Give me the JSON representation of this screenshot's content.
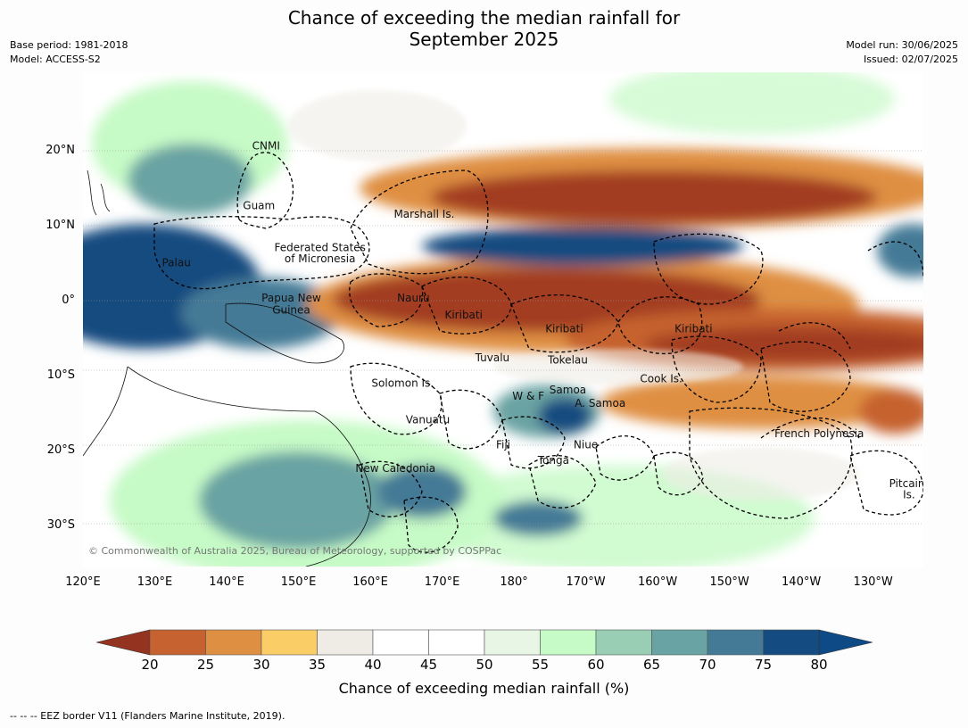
{
  "title": {
    "line1": "Chance of exceeding the median rainfall for",
    "line2": "September 2025"
  },
  "meta_left": {
    "base_period": "Base period: 1981-2018",
    "model": "Model: ACCESS-S2"
  },
  "meta_right": {
    "model_run": "Model run: 30/06/2025",
    "issued": "Issued: 02/07/2025"
  },
  "map": {
    "lon_ticks": [
      "120°E",
      "130°E",
      "140°E",
      "150°E",
      "160°E",
      "170°E",
      "180°",
      "170°W",
      "160°W",
      "150°W",
      "140°W",
      "130°W"
    ],
    "lat_ticks": [
      "20°N",
      "10°N",
      "0°",
      "10°S",
      "20°S",
      "30°S"
    ],
    "lon_range": [
      120,
      237
    ],
    "lat_range": [
      -35.5,
      30.5
    ],
    "labels": [
      {
        "text": "CNMI",
        "lon": 145.5,
        "lat": 20.2
      },
      {
        "text": "Guam",
        "lon": 144.5,
        "lat": 12.2
      },
      {
        "text": "Marshall Is.",
        "lon": 167.5,
        "lat": 11.1
      },
      {
        "text": "Federated States",
        "lon": 153,
        "lat": 6.6
      },
      {
        "text": "of Micronesia",
        "lon": 153,
        "lat": 5.1
      },
      {
        "text": "Palau",
        "lon": 133,
        "lat": 4.6
      },
      {
        "text": "Papua New",
        "lon": 149,
        "lat": -0.1
      },
      {
        "text": "Guinea",
        "lon": 149,
        "lat": -1.7
      },
      {
        "text": "Nauru",
        "lon": 166,
        "lat": -0.1
      },
      {
        "text": "Kiribati",
        "lon": 173,
        "lat": -2.4
      },
      {
        "text": "Kiribati",
        "lon": 187,
        "lat": -4.2
      },
      {
        "text": "Kiribati",
        "lon": 205,
        "lat": -4.2
      },
      {
        "text": "Tuvalu",
        "lon": 177,
        "lat": -8.1
      },
      {
        "text": "Tokelau",
        "lon": 187.5,
        "lat": -8.4
      },
      {
        "text": "Cook Is.",
        "lon": 200.5,
        "lat": -10.9
      },
      {
        "text": "Solomon Is.",
        "lon": 164.5,
        "lat": -11.5
      },
      {
        "text": "Samoa",
        "lon": 187.5,
        "lat": -12.4
      },
      {
        "text": "W & F",
        "lon": 182,
        "lat": -13.2
      },
      {
        "text": "A. Samoa",
        "lon": 192,
        "lat": -14.2
      },
      {
        "text": "Vanuatu",
        "lon": 168,
        "lat": -16.4
      },
      {
        "text": "Fiji",
        "lon": 178.5,
        "lat": -19.7
      },
      {
        "text": "Niue",
        "lon": 190,
        "lat": -19.7
      },
      {
        "text": "French Polynesia",
        "lon": 222.5,
        "lat": -18.2
      },
      {
        "text": "Tonga",
        "lon": 185.5,
        "lat": -21.8
      },
      {
        "text": "New Caledonia",
        "lon": 163.5,
        "lat": -22.9
      },
      {
        "text": "Pitcairn",
        "lon": 235,
        "lat": -24.9
      },
      {
        "text": "Is.",
        "lon": 235,
        "lat": -26.4
      }
    ],
    "credit": "© Commonwealth of Australia 2025, Bureau of Meteorology, supported by COSPPac"
  },
  "colorbar": {
    "ticks": [
      "20",
      "25",
      "30",
      "35",
      "40",
      "45",
      "50",
      "55",
      "60",
      "65",
      "70",
      "75",
      "80"
    ],
    "colors": [
      "#a33d22",
      "#c6622f",
      "#df8f42",
      "#fbcd67",
      "#efece6",
      "#ffffff",
      "#ffffff",
      "#e8f6e6",
      "#c6fac6",
      "#99cdb4",
      "#6aa3a3",
      "#457a96",
      "#144b80"
    ],
    "under_color": "#943420",
    "over_color": "#0e4a86",
    "label": "Chance of exceeding median rainfall (%)"
  },
  "footnote": "-- -- -- EEZ border V11 (Flanders Marine Institute, 2019)."
}
